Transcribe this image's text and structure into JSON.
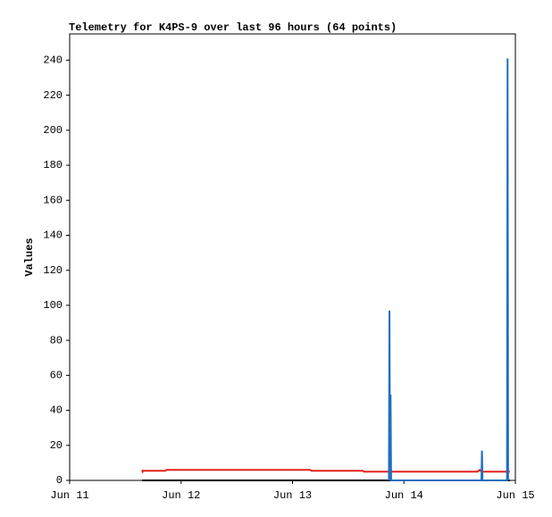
{
  "chart_data": {
    "type": "line",
    "title": "Telemetry for K4PS-9 over last 96 hours (64 points)",
    "y_label": "Values",
    "xlim": [
      0,
      4
    ],
    "xticks": [
      {
        "value": 0,
        "label": "Jun 11"
      },
      {
        "value": 1,
        "label": "Jun 12"
      },
      {
        "value": 2,
        "label": "Jun 13"
      },
      {
        "value": 3,
        "label": "Jun 14"
      },
      {
        "value": 4,
        "label": "Jun 15"
      }
    ],
    "ylim": [
      0,
      255
    ],
    "yticks": [
      0,
      20,
      40,
      60,
      80,
      100,
      120,
      140,
      160,
      180,
      200,
      220,
      240
    ],
    "grid": false,
    "series": [
      {
        "color": "#e3211c",
        "x": [
          0.65,
          0.655,
          0.66,
          0.86,
          0.87,
          2.16,
          2.17,
          2.63,
          2.64,
          3.66,
          3.68,
          3.7,
          3.95
        ],
        "values": [
          6,
          5,
          5.5,
          5.5,
          6,
          6,
          5.5,
          5.5,
          5,
          5,
          6,
          5,
          5
        ]
      },
      {
        "color": "#000000",
        "x": [
          0.65,
          3.95
        ],
        "values": [
          0,
          0
        ]
      },
      {
        "color": "#1f6fbf",
        "x": [
          2.865,
          2.87,
          2.875,
          2.88,
          2.885,
          3.695,
          3.7,
          3.705,
          3.925,
          3.93,
          3.935
        ],
        "values": [
          0,
          97,
          0,
          49,
          0,
          0,
          17,
          0,
          0,
          241,
          0
        ]
      }
    ]
  }
}
